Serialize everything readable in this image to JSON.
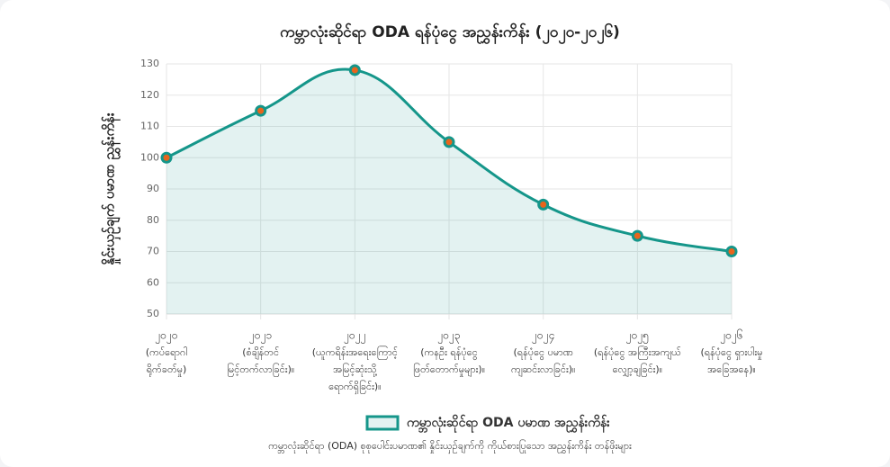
{
  "chart_data": {
    "type": "line",
    "title": "ကမ္ဘာလုံးဆိုင်ရာ ODA ရန်ပုံငွေ အညွှန်းကိန်း (၂၀၂၀-၂၀၂၆)",
    "y_label": "နှိုင်းယှဉ်ချက် ပမာဏ ညွှန်းကိန်း",
    "caption": "ကမ္ဘာလုံးဆိုင်ရာ (ODA) စုစုပေါင်းပမာဏ၏ နှိုင်းယှဉ်ချက်ကို ကိုယ်စားပြုသော အညွှန်းကိန်း တန်ဖိုးများ",
    "categories": [
      [
        "၂၀၂၀",
        "(ကပ်ရောဂါ",
        "ရိုက်ခတ်မှု)"
      ],
      [
        "၂၀၂၁",
        "(စံချိန်တင်",
        "မြင့်တက်လာခြင်း)။"
      ],
      [
        "၂၀၂၂",
        "(ယူကရိန်းအရေးကြောင့်",
        "အမြင့်ဆုံးသို့",
        "ရောက်ရှိခြင်း)။"
      ],
      [
        "၂၀၂၃",
        "(ကနဦး ရန်ပုံငွေ",
        "ဖြတ်တောက်မှုများ)။"
      ],
      [
        "၂၀၂၄",
        "(ရန်ပုံငွေ ပမာဏ",
        "ကျဆင်းလာခြင်း)။"
      ],
      [
        "၂၀၂၅",
        "(ရန်ပုံငွေ အကြီးအကျယ်",
        "လျှော့ချခြင်း)။"
      ],
      [
        "၂၀၂၆",
        "(ရန်ပုံငွေ ရှားပါးမှု",
        "အခြေအနေ)။"
      ]
    ],
    "series": [
      {
        "name": "ကမ္ဘာလုံးဆိုင်ရာ ODA ပမာဏ အညွှန်းကိန်း",
        "color": "#15968a",
        "point_color": "#e8651c",
        "fill": true,
        "values": [
          100,
          115,
          128,
          105,
          85,
          75,
          70
        ]
      }
    ],
    "ylim": [
      50,
      130
    ],
    "yticks": [
      50,
      60,
      70,
      80,
      90,
      100,
      110,
      120,
      130
    ],
    "grid": true,
    "legend": "bottom"
  }
}
